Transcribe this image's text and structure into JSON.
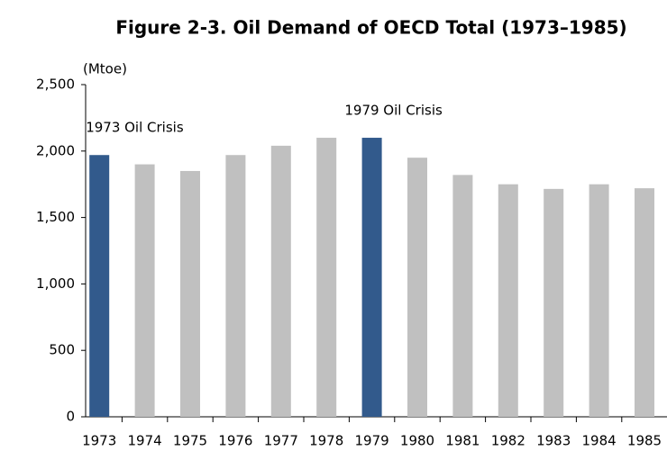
{
  "chart_data": {
    "type": "bar",
    "title": "Figure 2-3. Oil Demand of OECD Total (1973–1985)",
    "y_label": "(Mtoe)",
    "categories": [
      "1973",
      "1974",
      "1975",
      "1976",
      "1977",
      "1978",
      "1979",
      "1980",
      "1981",
      "1982",
      "1983",
      "1984",
      "1985"
    ],
    "values": [
      1970,
      1900,
      1850,
      1970,
      2040,
      2100,
      2100,
      1950,
      1820,
      1750,
      1715,
      1750,
      1720
    ],
    "colors": [
      "#325a8c",
      "#c0c0c0",
      "#c0c0c0",
      "#c0c0c0",
      "#c0c0c0",
      "#c0c0c0",
      "#325a8c",
      "#c0c0c0",
      "#c0c0c0",
      "#c0c0c0",
      "#c0c0c0",
      "#c0c0c0",
      "#c0c0c0"
    ],
    "annotations": [
      {
        "text": "1973 Oil Crisis",
        "category": "1973"
      },
      {
        "text": "1979 Oil Crisis",
        "category": "1979"
      }
    ],
    "ylim": [
      0,
      2500
    ],
    "yticks": [
      0,
      500,
      {
        "value": 1000,
        "label": "1,000"
      },
      {
        "value": 1500,
        "label": "1,500"
      },
      {
        "value": 2000,
        "label": "2,000"
      },
      {
        "value": 2500,
        "label": "2,500"
      }
    ],
    "grid": false
  }
}
